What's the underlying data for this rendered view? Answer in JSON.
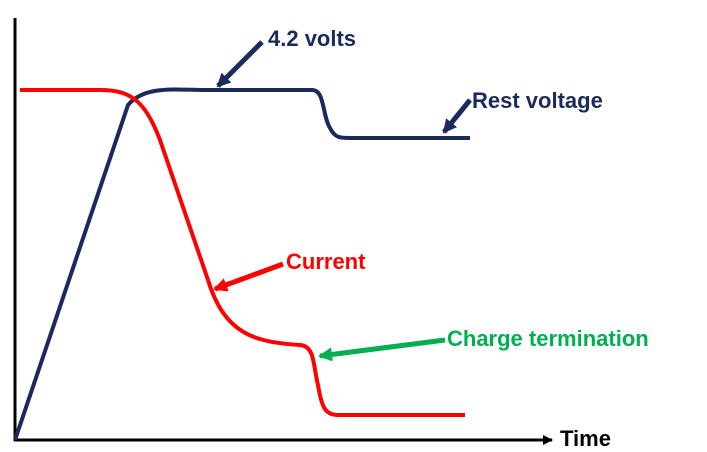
{
  "labels": {
    "voltage_peak": "4.2 volts",
    "rest_voltage": "Rest voltage",
    "current": "Current",
    "charge_termination": "Charge termination",
    "x_axis": "Time"
  }
}
